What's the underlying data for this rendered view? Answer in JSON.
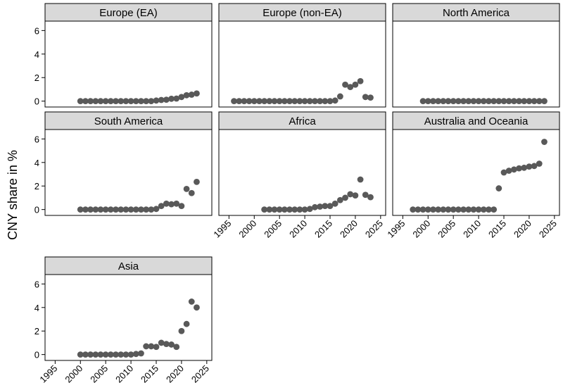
{
  "chart_data": {
    "type": "scatter",
    "ylabel": "CNY share in %",
    "xlabel": "",
    "xlim": [
      1993,
      2026
    ],
    "ylim": [
      -0.5,
      6.8
    ],
    "x_ticks": [
      1995,
      2000,
      2005,
      2010,
      2015,
      2020,
      2025
    ],
    "y_ticks": [
      0,
      2,
      4,
      6
    ],
    "grid": false,
    "point_color": "#595959",
    "strip_fill": "#d9d9d9",
    "panels": [
      {
        "name": "Europe (EA)",
        "x": [
          2000,
          2001,
          2002,
          2003,
          2004,
          2005,
          2006,
          2007,
          2008,
          2009,
          2010,
          2011,
          2012,
          2013,
          2014,
          2015,
          2016,
          2017,
          2018,
          2019,
          2020,
          2021,
          2022,
          2023
        ],
        "y": [
          0,
          0,
          0,
          0,
          0,
          0,
          0,
          0,
          0,
          0,
          0,
          0,
          0,
          0,
          0,
          0.05,
          0.1,
          0.12,
          0.2,
          0.22,
          0.35,
          0.5,
          0.55,
          0.65
        ]
      },
      {
        "name": "Europe (non-EA)",
        "x": [
          1996,
          1997,
          1998,
          1999,
          2000,
          2001,
          2002,
          2003,
          2004,
          2005,
          2006,
          2007,
          2008,
          2009,
          2010,
          2011,
          2012,
          2013,
          2014,
          2015,
          2016,
          2017,
          2018,
          2019,
          2020,
          2021,
          2022,
          2023
        ],
        "y": [
          0,
          0,
          0,
          0,
          0,
          0,
          0,
          0,
          0,
          0,
          0,
          0,
          0,
          0,
          0,
          0,
          0,
          0,
          0,
          0,
          0.05,
          0.4,
          1.4,
          1.2,
          1.4,
          1.7,
          0.35,
          0.3
        ]
      },
      {
        "name": "North America",
        "x": [
          1999,
          2000,
          2001,
          2002,
          2003,
          2004,
          2005,
          2006,
          2007,
          2008,
          2009,
          2010,
          2011,
          2012,
          2013,
          2014,
          2015,
          2016,
          2017,
          2018,
          2019,
          2020,
          2021,
          2022,
          2023
        ],
        "y": [
          0,
          0,
          0,
          0,
          0,
          0,
          0,
          0,
          0,
          0,
          0,
          0,
          0,
          0,
          0,
          0,
          0,
          0,
          0,
          0,
          0,
          0,
          0,
          0,
          0
        ]
      },
      {
        "name": "South America",
        "x": [
          2000,
          2001,
          2002,
          2003,
          2004,
          2005,
          2006,
          2007,
          2008,
          2009,
          2010,
          2011,
          2012,
          2013,
          2014,
          2015,
          2016,
          2017,
          2018,
          2019,
          2020,
          2021,
          2022,
          2023
        ],
        "y": [
          0,
          0,
          0,
          0,
          0,
          0,
          0,
          0,
          0,
          0,
          0,
          0,
          0,
          0,
          0,
          0.05,
          0.3,
          0.5,
          0.45,
          0.5,
          0.3,
          1.75,
          1.4,
          2.35
        ]
      },
      {
        "name": "Africa",
        "x": [
          2002,
          2003,
          2004,
          2005,
          2006,
          2007,
          2008,
          2009,
          2010,
          2011,
          2012,
          2013,
          2014,
          2015,
          2016,
          2017,
          2018,
          2019,
          2020,
          2021,
          2022,
          2023
        ],
        "y": [
          0,
          0,
          0,
          0,
          0,
          0,
          0,
          0,
          0,
          0.05,
          0.2,
          0.25,
          0.3,
          0.3,
          0.5,
          0.8,
          1.0,
          1.3,
          1.2,
          2.55,
          1.25,
          1.05
        ]
      },
      {
        "name": "Australia and Oceania",
        "x": [
          1997,
          1998,
          1999,
          2000,
          2001,
          2002,
          2003,
          2004,
          2005,
          2006,
          2007,
          2008,
          2009,
          2010,
          2011,
          2012,
          2013,
          2014,
          2015,
          2016,
          2017,
          2018,
          2019,
          2020,
          2021,
          2022,
          2023
        ],
        "y": [
          0,
          0,
          0,
          0,
          0,
          0,
          0,
          0,
          0,
          0,
          0,
          0,
          0,
          0,
          0,
          0,
          0,
          1.8,
          3.15,
          3.3,
          3.4,
          3.5,
          3.55,
          3.65,
          3.7,
          3.9,
          5.75
        ]
      },
      {
        "name": "Asia",
        "x": [
          2000,
          2001,
          2002,
          2003,
          2004,
          2005,
          2006,
          2007,
          2008,
          2009,
          2010,
          2011,
          2012,
          2013,
          2014,
          2015,
          2016,
          2017,
          2018,
          2019,
          2020,
          2021,
          2022,
          2023
        ],
        "y": [
          0,
          0,
          0,
          0,
          0,
          0,
          0,
          0,
          0,
          0,
          0,
          0.05,
          0.1,
          0.7,
          0.7,
          0.65,
          1.0,
          0.9,
          0.85,
          0.65,
          2.0,
          2.6,
          4.5,
          4.0
        ]
      }
    ]
  }
}
